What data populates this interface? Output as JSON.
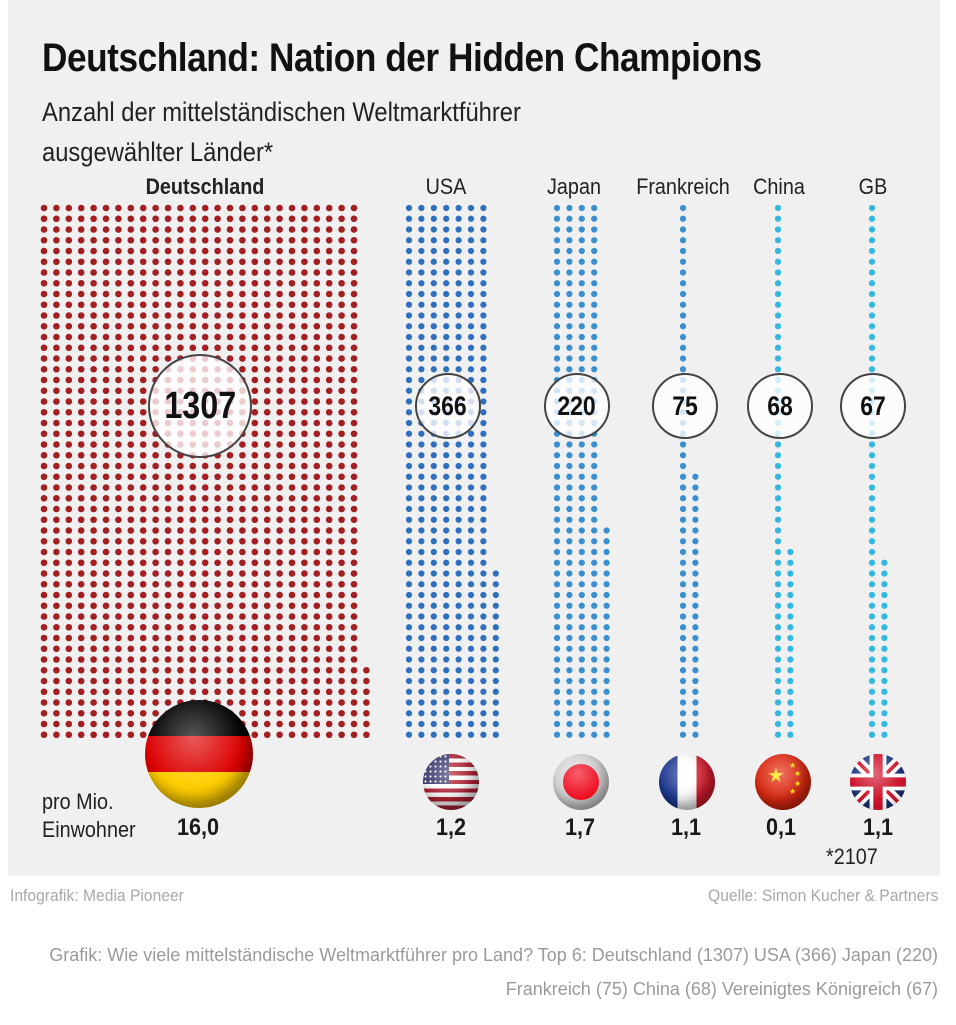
{
  "header": {
    "title": "Deutschland: Nation der Hidden Champions",
    "subtitle_line1": "Anzahl der mittelständischen Weltmarktführer",
    "subtitle_line2": "ausgewählter Länder*"
  },
  "per_million_label_line1": "pro Mio.",
  "per_million_label_line2": "Einwohner",
  "footnote": "*2107",
  "credit_left": "Infografik: Media Pioneer",
  "credit_right": "Quelle: Simon Kucher & Partners",
  "caption": "Grafik: Wie viele mittelständische Weltmarktführer pro Land? Top 6: Deutschland (1307) USA (366) Japan (220) Frankreich (75) China (68) Vereinigtes Königreich (67)",
  "chart_data": {
    "type": "bar",
    "subtype": "dot-matrix (unit chart)",
    "title": "Deutschland: Nation der Hidden Champions",
    "subtitle": "Anzahl der mittelständischen Weltmarktführer ausgewählter Länder*",
    "categories": [
      "Deutschland",
      "USA",
      "Japan",
      "Frankreich",
      "China",
      "GB"
    ],
    "series": [
      {
        "name": "Anzahl Weltmarktführer",
        "values": [
          1307,
          366,
          220,
          75,
          68,
          67
        ]
      },
      {
        "name": "pro Mio. Einwohner",
        "values": [
          16.0,
          1.2,
          1.7,
          1.1,
          0.1,
          1.1
        ]
      }
    ],
    "value_labels": [
      "1307",
      "366",
      "220",
      "75",
      "68",
      "67"
    ],
    "per_million_labels": [
      "16,0",
      "1,2",
      "1,7",
      "1,1",
      "0,1",
      "1,1"
    ],
    "colors": [
      "#a31f22",
      "#2f6fc0",
      "#3a8fd0",
      "#3a8fd0",
      "#32b8e2",
      "#32b8e2"
    ],
    "flags": [
      "germany-flag",
      "usa-flag",
      "japan-flag",
      "france-flag",
      "china-flag",
      "uk-flag"
    ],
    "highlight_category": "Deutschland",
    "grid": false,
    "legend": "none"
  }
}
